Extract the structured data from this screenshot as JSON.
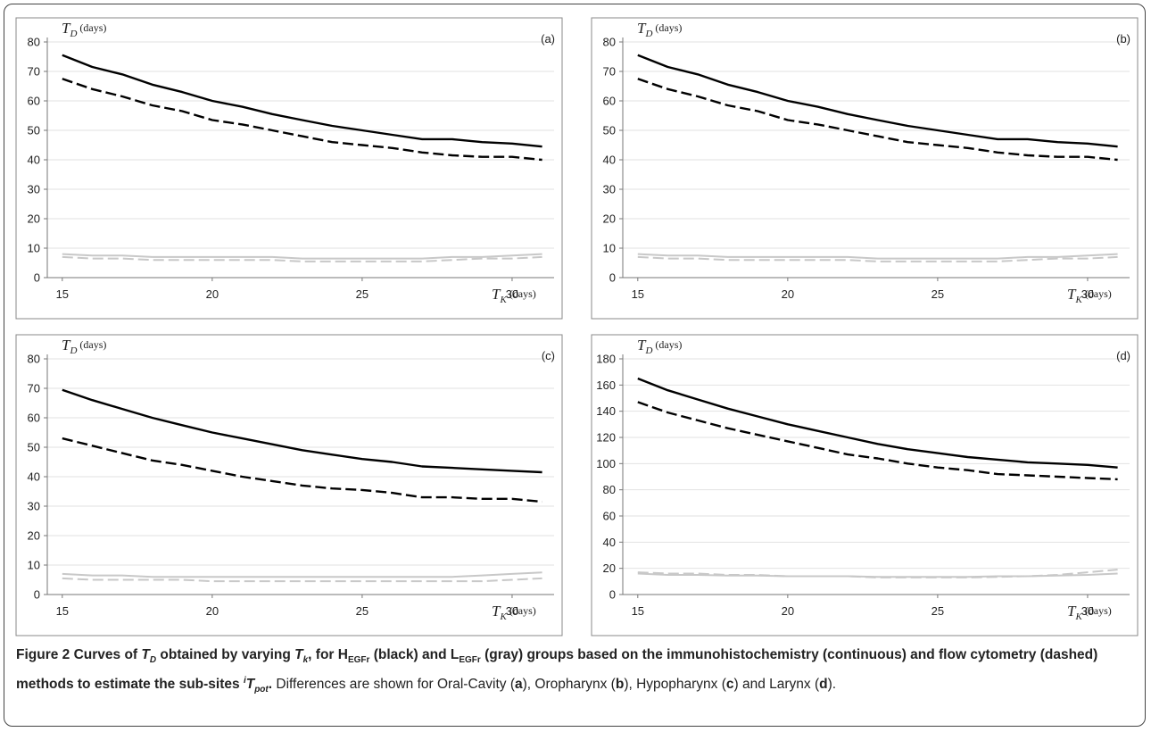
{
  "chart_data": [
    {
      "type": "line",
      "panel_label": "(a)",
      "y_label": {
        "symbol": "T",
        "sub": "D",
        "unit": "(days)"
      },
      "x_label": {
        "symbol": "T",
        "sub": "K",
        "unit": "(days)"
      },
      "x": [
        15,
        16,
        17,
        18,
        19,
        20,
        21,
        22,
        23,
        24,
        25,
        26,
        27,
        28,
        29,
        30,
        31
      ],
      "xlim": [
        14.5,
        31.4
      ],
      "xticks": [
        15,
        20,
        25,
        30
      ],
      "ylim": [
        0,
        80
      ],
      "yticks": [
        0,
        10,
        20,
        30,
        40,
        50,
        60,
        70,
        80
      ],
      "grid": true,
      "series": [
        {
          "color": "#000000",
          "dashed": false,
          "values": [
            75.5,
            71.5,
            69,
            65.5,
            63,
            60,
            58,
            55.5,
            53.5,
            51.5,
            50,
            48.5,
            47,
            47,
            46,
            45.5,
            44.5
          ]
        },
        {
          "color": "#000000",
          "dashed": true,
          "values": [
            67.5,
            64,
            61.5,
            58.5,
            56.5,
            53.5,
            52,
            50,
            48,
            46,
            45,
            44,
            42.5,
            41.5,
            41,
            41,
            40
          ]
        },
        {
          "color": "#c8c8c8",
          "dashed": false,
          "values": [
            8,
            7.5,
            7.5,
            7,
            7,
            7,
            7,
            7,
            6.5,
            6.5,
            6.5,
            6.5,
            6.5,
            7,
            7,
            7.5,
            8
          ]
        },
        {
          "color": "#c8c8c8",
          "dashed": true,
          "values": [
            7,
            6.5,
            6.5,
            6,
            6,
            6,
            6,
            6,
            5.5,
            5.5,
            5.5,
            5.5,
            5.5,
            6,
            6.5,
            6.5,
            7
          ]
        }
      ]
    },
    {
      "type": "line",
      "panel_label": "(b)",
      "y_label": {
        "symbol": "T",
        "sub": "D",
        "unit": "(days)"
      },
      "x_label": {
        "symbol": "T",
        "sub": "K",
        "unit": "(days)"
      },
      "x": [
        15,
        16,
        17,
        18,
        19,
        20,
        21,
        22,
        23,
        24,
        25,
        26,
        27,
        28,
        29,
        30,
        31
      ],
      "xlim": [
        14.5,
        31.4
      ],
      "xticks": [
        15,
        20,
        25,
        30
      ],
      "ylim": [
        0,
        80
      ],
      "yticks": [
        0,
        10,
        20,
        30,
        40,
        50,
        60,
        70,
        80
      ],
      "grid": true,
      "series": [
        {
          "color": "#000000",
          "dashed": false,
          "values": [
            75.5,
            71.5,
            69,
            65.5,
            63,
            60,
            58,
            55.5,
            53.5,
            51.5,
            50,
            48.5,
            47,
            47,
            46,
            45.5,
            44.5
          ]
        },
        {
          "color": "#000000",
          "dashed": true,
          "values": [
            67.5,
            64,
            61.5,
            58.5,
            56.5,
            53.5,
            52,
            50,
            48,
            46,
            45,
            44,
            42.5,
            41.5,
            41,
            41,
            40
          ]
        },
        {
          "color": "#c8c8c8",
          "dashed": false,
          "values": [
            8,
            7.5,
            7.5,
            7,
            7,
            7,
            7,
            7,
            6.5,
            6.5,
            6.5,
            6.5,
            6.5,
            7,
            7,
            7.5,
            8
          ]
        },
        {
          "color": "#c8c8c8",
          "dashed": true,
          "values": [
            7,
            6.5,
            6.5,
            6,
            6,
            6,
            6,
            6,
            5.5,
            5.5,
            5.5,
            5.5,
            5.5,
            6,
            6.5,
            6.5,
            7
          ]
        }
      ]
    },
    {
      "type": "line",
      "panel_label": "(c)",
      "y_label": {
        "symbol": "T",
        "sub": "D",
        "unit": "(days)"
      },
      "x_label": {
        "symbol": "T",
        "sub": "K",
        "unit": "(days)"
      },
      "x": [
        15,
        16,
        17,
        18,
        19,
        20,
        21,
        22,
        23,
        24,
        25,
        26,
        27,
        28,
        29,
        30,
        31
      ],
      "xlim": [
        14.5,
        31.4
      ],
      "xticks": [
        15,
        20,
        25,
        30
      ],
      "ylim": [
        0,
        80
      ],
      "yticks": [
        0,
        10,
        20,
        30,
        40,
        50,
        60,
        70,
        80
      ],
      "grid": true,
      "series": [
        {
          "color": "#000000",
          "dashed": false,
          "values": [
            69.5,
            66,
            63,
            60,
            57.5,
            55,
            53,
            51,
            49,
            47.5,
            46,
            45,
            43.5,
            43,
            42.5,
            42,
            41.5
          ]
        },
        {
          "color": "#000000",
          "dashed": true,
          "values": [
            53,
            50.5,
            48,
            45.5,
            44,
            42,
            40,
            38.5,
            37,
            36,
            35.5,
            34.5,
            33,
            33,
            32.5,
            32.5,
            31.5
          ]
        },
        {
          "color": "#c8c8c8",
          "dashed": false,
          "values": [
            7,
            6.5,
            6.5,
            6,
            6,
            6,
            6,
            6,
            6,
            6,
            6,
            6,
            6,
            6,
            6.5,
            7,
            7.5
          ]
        },
        {
          "color": "#c8c8c8",
          "dashed": true,
          "values": [
            5.5,
            5,
            5,
            5,
            5,
            4.5,
            4.5,
            4.5,
            4.5,
            4.5,
            4.5,
            4.5,
            4.5,
            4.5,
            4.5,
            5,
            5.5
          ]
        }
      ]
    },
    {
      "type": "line",
      "panel_label": "(d)",
      "y_label": {
        "symbol": "T",
        "sub": "D",
        "unit": "(days)"
      },
      "x_label": {
        "symbol": "T",
        "sub": "K",
        "unit": "(days)"
      },
      "x": [
        15,
        16,
        17,
        18,
        19,
        20,
        21,
        22,
        23,
        24,
        25,
        26,
        27,
        28,
        29,
        30,
        31
      ],
      "xlim": [
        14.5,
        31.4
      ],
      "xticks": [
        15,
        20,
        25,
        30
      ],
      "ylim": [
        0,
        180
      ],
      "yticks": [
        0,
        20,
        40,
        60,
        80,
        100,
        120,
        140,
        160,
        180
      ],
      "grid": true,
      "series": [
        {
          "color": "#000000",
          "dashed": false,
          "values": [
            165,
            156,
            149,
            142,
            136,
            130,
            125,
            120,
            115,
            111,
            108,
            105,
            103,
            101,
            100,
            99,
            97
          ]
        },
        {
          "color": "#000000",
          "dashed": true,
          "values": [
            147,
            139,
            133,
            127,
            122,
            117,
            112,
            107,
            104,
            100,
            97,
            95,
            92,
            91,
            90,
            89,
            88
          ]
        },
        {
          "color": "#c8c8c8",
          "dashed": false,
          "values": [
            16,
            15,
            15,
            14.5,
            14.5,
            14,
            14,
            14,
            13.5,
            13.5,
            13.5,
            13.5,
            14,
            14,
            14.5,
            15,
            16
          ]
        },
        {
          "color": "#c8c8c8",
          "dashed": true,
          "values": [
            17,
            16,
            16,
            15,
            15,
            14,
            14,
            14,
            13,
            13,
            13,
            13,
            13.5,
            14,
            15,
            17,
            19
          ]
        }
      ]
    }
  ],
  "caption": [
    "Figure 2",
    " Curves of ",
    "T",
    "D",
    " obtained by varying ",
    "T",
    "k",
    ", for H",
    "EGFr",
    " (black) and L",
    "EGFr",
    " (gray) groups based on the immunohistochemistry (continuous) and flow cytometry (dashed) methods to estimate the sub-sites ",
    "i",
    "T",
    "pot",
    ".",
    " Differences are shown for Oral-Cavity (",
    "a",
    "), Oropharynx (",
    "b",
    "), Hypopharynx (",
    "c",
    ") and Larynx (",
    "d",
    ")."
  ]
}
